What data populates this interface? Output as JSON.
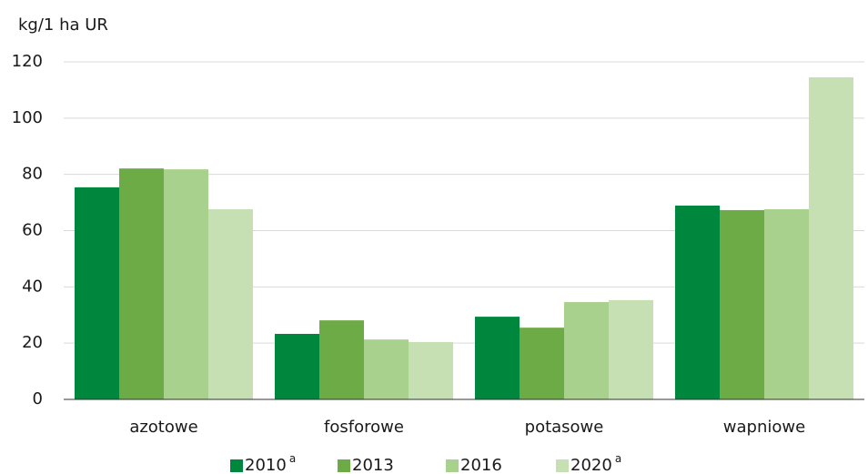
{
  "chart_data": {
    "type": "bar",
    "y_label": "kg/1 ha UR",
    "categories": [
      "azotowe",
      "fosforowe",
      "potasowe",
      "wapniowe"
    ],
    "series": [
      {
        "name": "2010",
        "footnote": "a",
        "color": "#00873e",
        "values": [
          75.4,
          23.3,
          29.4,
          68.9
        ]
      },
      {
        "name": "2013",
        "color": "#6cab45",
        "values": [
          82.1,
          28.1,
          25.5,
          67.3
        ]
      },
      {
        "name": "2016",
        "color": "#a9d18e",
        "values": [
          81.8,
          21.3,
          34.6,
          67.6
        ]
      },
      {
        "name": "2020",
        "footnote": "a",
        "color": "#c6e0b4",
        "values": [
          67.6,
          20.4,
          35.3,
          114.5
        ]
      }
    ],
    "ylim": [
      0,
      120
    ],
    "yticks": [
      0,
      20,
      40,
      60,
      80,
      100,
      120
    ],
    "grid": true,
    "legend": "bottom"
  }
}
